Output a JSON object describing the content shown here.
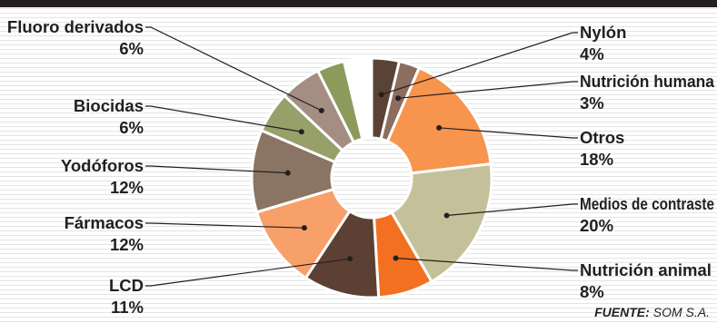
{
  "chart_data": {
    "type": "pie",
    "donut": true,
    "categories": [
      "Nylón",
      "Nutrición humana",
      "Otros",
      "Medios de contraste",
      "Nutrición animal",
      "LCD",
      "Fármacos",
      "Yodóforos",
      "Biocidas",
      "Fluoro derivados",
      "",
      ""
    ],
    "values": [
      4,
      3,
      18,
      20,
      8,
      11,
      12,
      12,
      6,
      6,
      4,
      4
    ],
    "value_labels": [
      "4%",
      "3%",
      "18%",
      "20%",
      "8%",
      "11%",
      "12%",
      "12%",
      "6%",
      "6%",
      "",
      ""
    ],
    "colors": [
      "#5a4234",
      "#8c6d5e",
      "#f7944e",
      "#c4c19a",
      "#f37021",
      "#5c4033",
      "#f7a06a",
      "#8a7463",
      "#98a06a",
      "#a48e84",
      "#8c9a5b",
      "#ffffff"
    ],
    "grid": false,
    "legend": "none"
  },
  "source": {
    "label": "FUENTE:",
    "value": "SOM S.A."
  }
}
